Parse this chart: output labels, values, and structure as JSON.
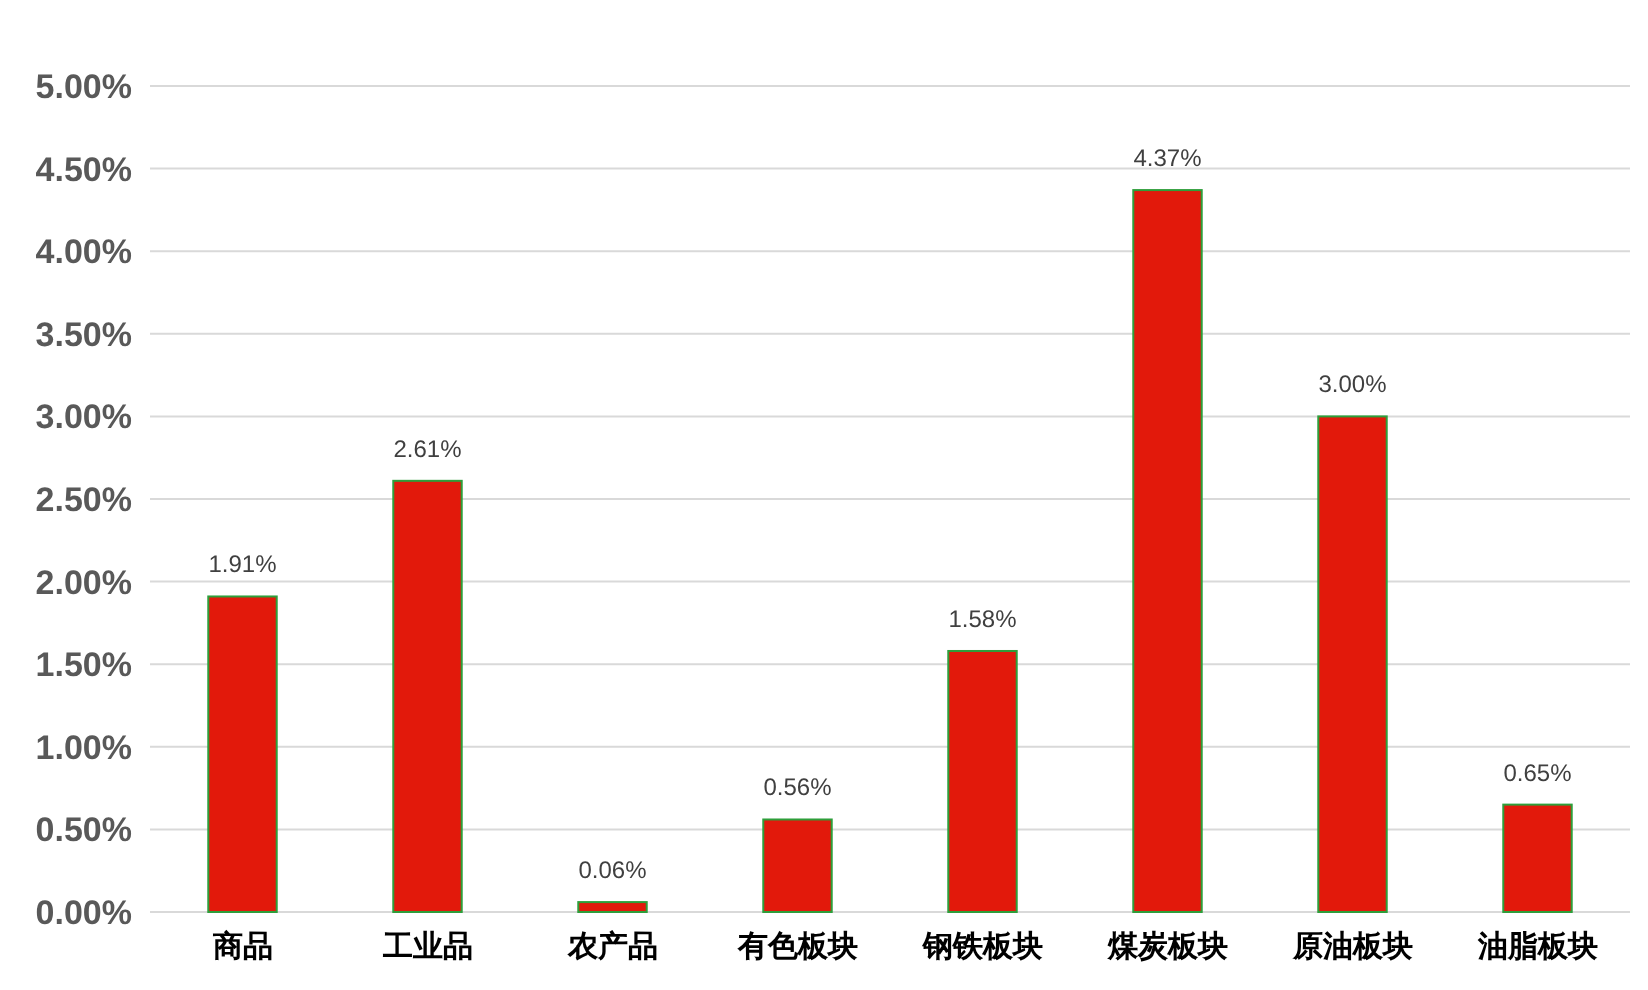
{
  "chart_data": {
    "type": "bar",
    "categories": [
      "商品",
      "工业品",
      "农产品",
      "有色板块",
      "钢铁板块",
      "煤炭板块",
      "原油板块",
      "油脂板块"
    ],
    "values": [
      1.91,
      2.61,
      0.06,
      0.56,
      1.58,
      4.37,
      3.0,
      0.65
    ],
    "value_labels": [
      "1.91%",
      "2.61%",
      "0.06%",
      "0.56%",
      "1.58%",
      "4.37%",
      "3.00%",
      "0.65%"
    ],
    "color": "#e2190b",
    "ylim": [
      0,
      5
    ],
    "yticks": [
      {
        "value": 0,
        "label": "0.00%"
      },
      {
        "value": 0.5,
        "label": "0.50%"
      },
      {
        "value": 1,
        "label": "1.00%"
      },
      {
        "value": 1.5,
        "label": "1.50%"
      },
      {
        "value": 2,
        "label": "2.00%"
      },
      {
        "value": 2.5,
        "label": "2.50%"
      },
      {
        "value": 3,
        "label": "3.00%"
      },
      {
        "value": 3.5,
        "label": "3.50%"
      },
      {
        "value": 4,
        "label": "4.00%"
      },
      {
        "value": 4.5,
        "label": "4.50%"
      },
      {
        "value": 5,
        "label": "5.00%"
      }
    ],
    "grid": "y"
  }
}
